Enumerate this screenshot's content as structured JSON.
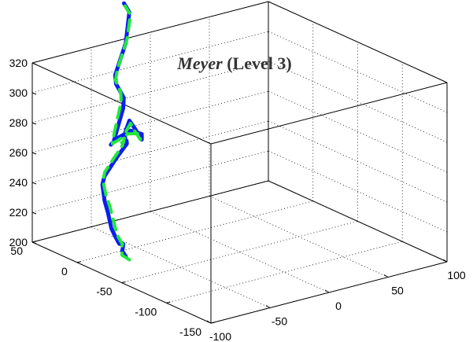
{
  "chart_data": {
    "type": "line",
    "projection": "3d",
    "title": {
      "italic_part": "Meyer",
      "regular_part": " (Level 3)"
    },
    "xlabel": "",
    "ylabel": "",
    "zlabel": "",
    "grid": true,
    "legend": "none",
    "axes": {
      "z": {
        "ticks": [
          "200",
          "220",
          "240",
          "260",
          "280",
          "300",
          "320"
        ]
      },
      "y": {
        "ticks": [
          "50",
          "0",
          "-50",
          "-100",
          "-150"
        ]
      },
      "x": {
        "ticks": [
          "-100",
          "-50",
          "0",
          "50",
          "100"
        ]
      }
    },
    "colors": {
      "series_a": "#0a1ef0",
      "series_b": "#22e83a"
    },
    "series": [
      {
        "color": "#0a1ef0",
        "points": [
          [
            -113,
            -72,
            226
          ],
          [
            -110,
            -64,
            227
          ],
          [
            -94,
            -44,
            223
          ],
          [
            -86,
            -32,
            218
          ],
          [
            -80,
            -21,
            214
          ],
          [
            -72,
            -6,
            213
          ],
          [
            -64,
            9,
            213
          ],
          [
            -51,
            30,
            215
          ],
          [
            -44,
            43,
            218
          ],
          [
            -33,
            60,
            222
          ],
          [
            -29,
            63,
            226
          ],
          [
            -31,
            47,
            243
          ],
          [
            -35,
            30,
            258
          ],
          [
            -30,
            37,
            257
          ],
          [
            -18,
            54,
            250
          ],
          [
            -5,
            72,
            246
          ],
          [
            5,
            84,
            244
          ],
          [
            8,
            84,
            250
          ],
          [
            12,
            83,
            244
          ],
          [
            17,
            82,
            236
          ],
          [
            20,
            86,
            238
          ],
          [
            18,
            96,
            238
          ],
          [
            14,
            104,
            232
          ],
          [
            12,
            110,
            226
          ],
          [
            15,
            111,
            227
          ],
          [
            30,
            120,
            244
          ],
          [
            32,
            122,
            250
          ],
          [
            30,
            128,
            258
          ],
          [
            33,
            133,
            262
          ],
          [
            45,
            137,
            280
          ],
          [
            48,
            137,
            300
          ],
          [
            45,
            139,
            306
          ]
        ]
      },
      {
        "color": "#22e83a",
        "points": [
          [
            -113,
            -76,
            225
          ],
          [
            -108,
            -61,
            223
          ],
          [
            -92,
            -40,
            221
          ],
          [
            -84,
            -30,
            217
          ],
          [
            -78,
            -20,
            215
          ],
          [
            -70,
            -5,
            214
          ],
          [
            -61,
            10,
            216
          ],
          [
            -50,
            29,
            219
          ],
          [
            -42,
            44,
            221
          ],
          [
            -34,
            58,
            225
          ],
          [
            -31,
            60,
            230
          ],
          [
            -34,
            44,
            246
          ],
          [
            -37,
            32,
            257
          ],
          [
            -31,
            41,
            255
          ],
          [
            -17,
            58,
            247
          ],
          [
            -4,
            74,
            243
          ],
          [
            6,
            85,
            243
          ],
          [
            9,
            84,
            248
          ],
          [
            13,
            85,
            242
          ],
          [
            18,
            85,
            235
          ],
          [
            21,
            90,
            237
          ],
          [
            18,
            99,
            235
          ],
          [
            16,
            107,
            229
          ],
          [
            14,
            111,
            226
          ],
          [
            18,
            114,
            232
          ],
          [
            29,
            121,
            248
          ],
          [
            31,
            124,
            253
          ],
          [
            31,
            130,
            260
          ],
          [
            36,
            134,
            266
          ],
          [
            46,
            137,
            282
          ],
          [
            49,
            137,
            298
          ],
          [
            46,
            139,
            304
          ]
        ]
      }
    ]
  }
}
